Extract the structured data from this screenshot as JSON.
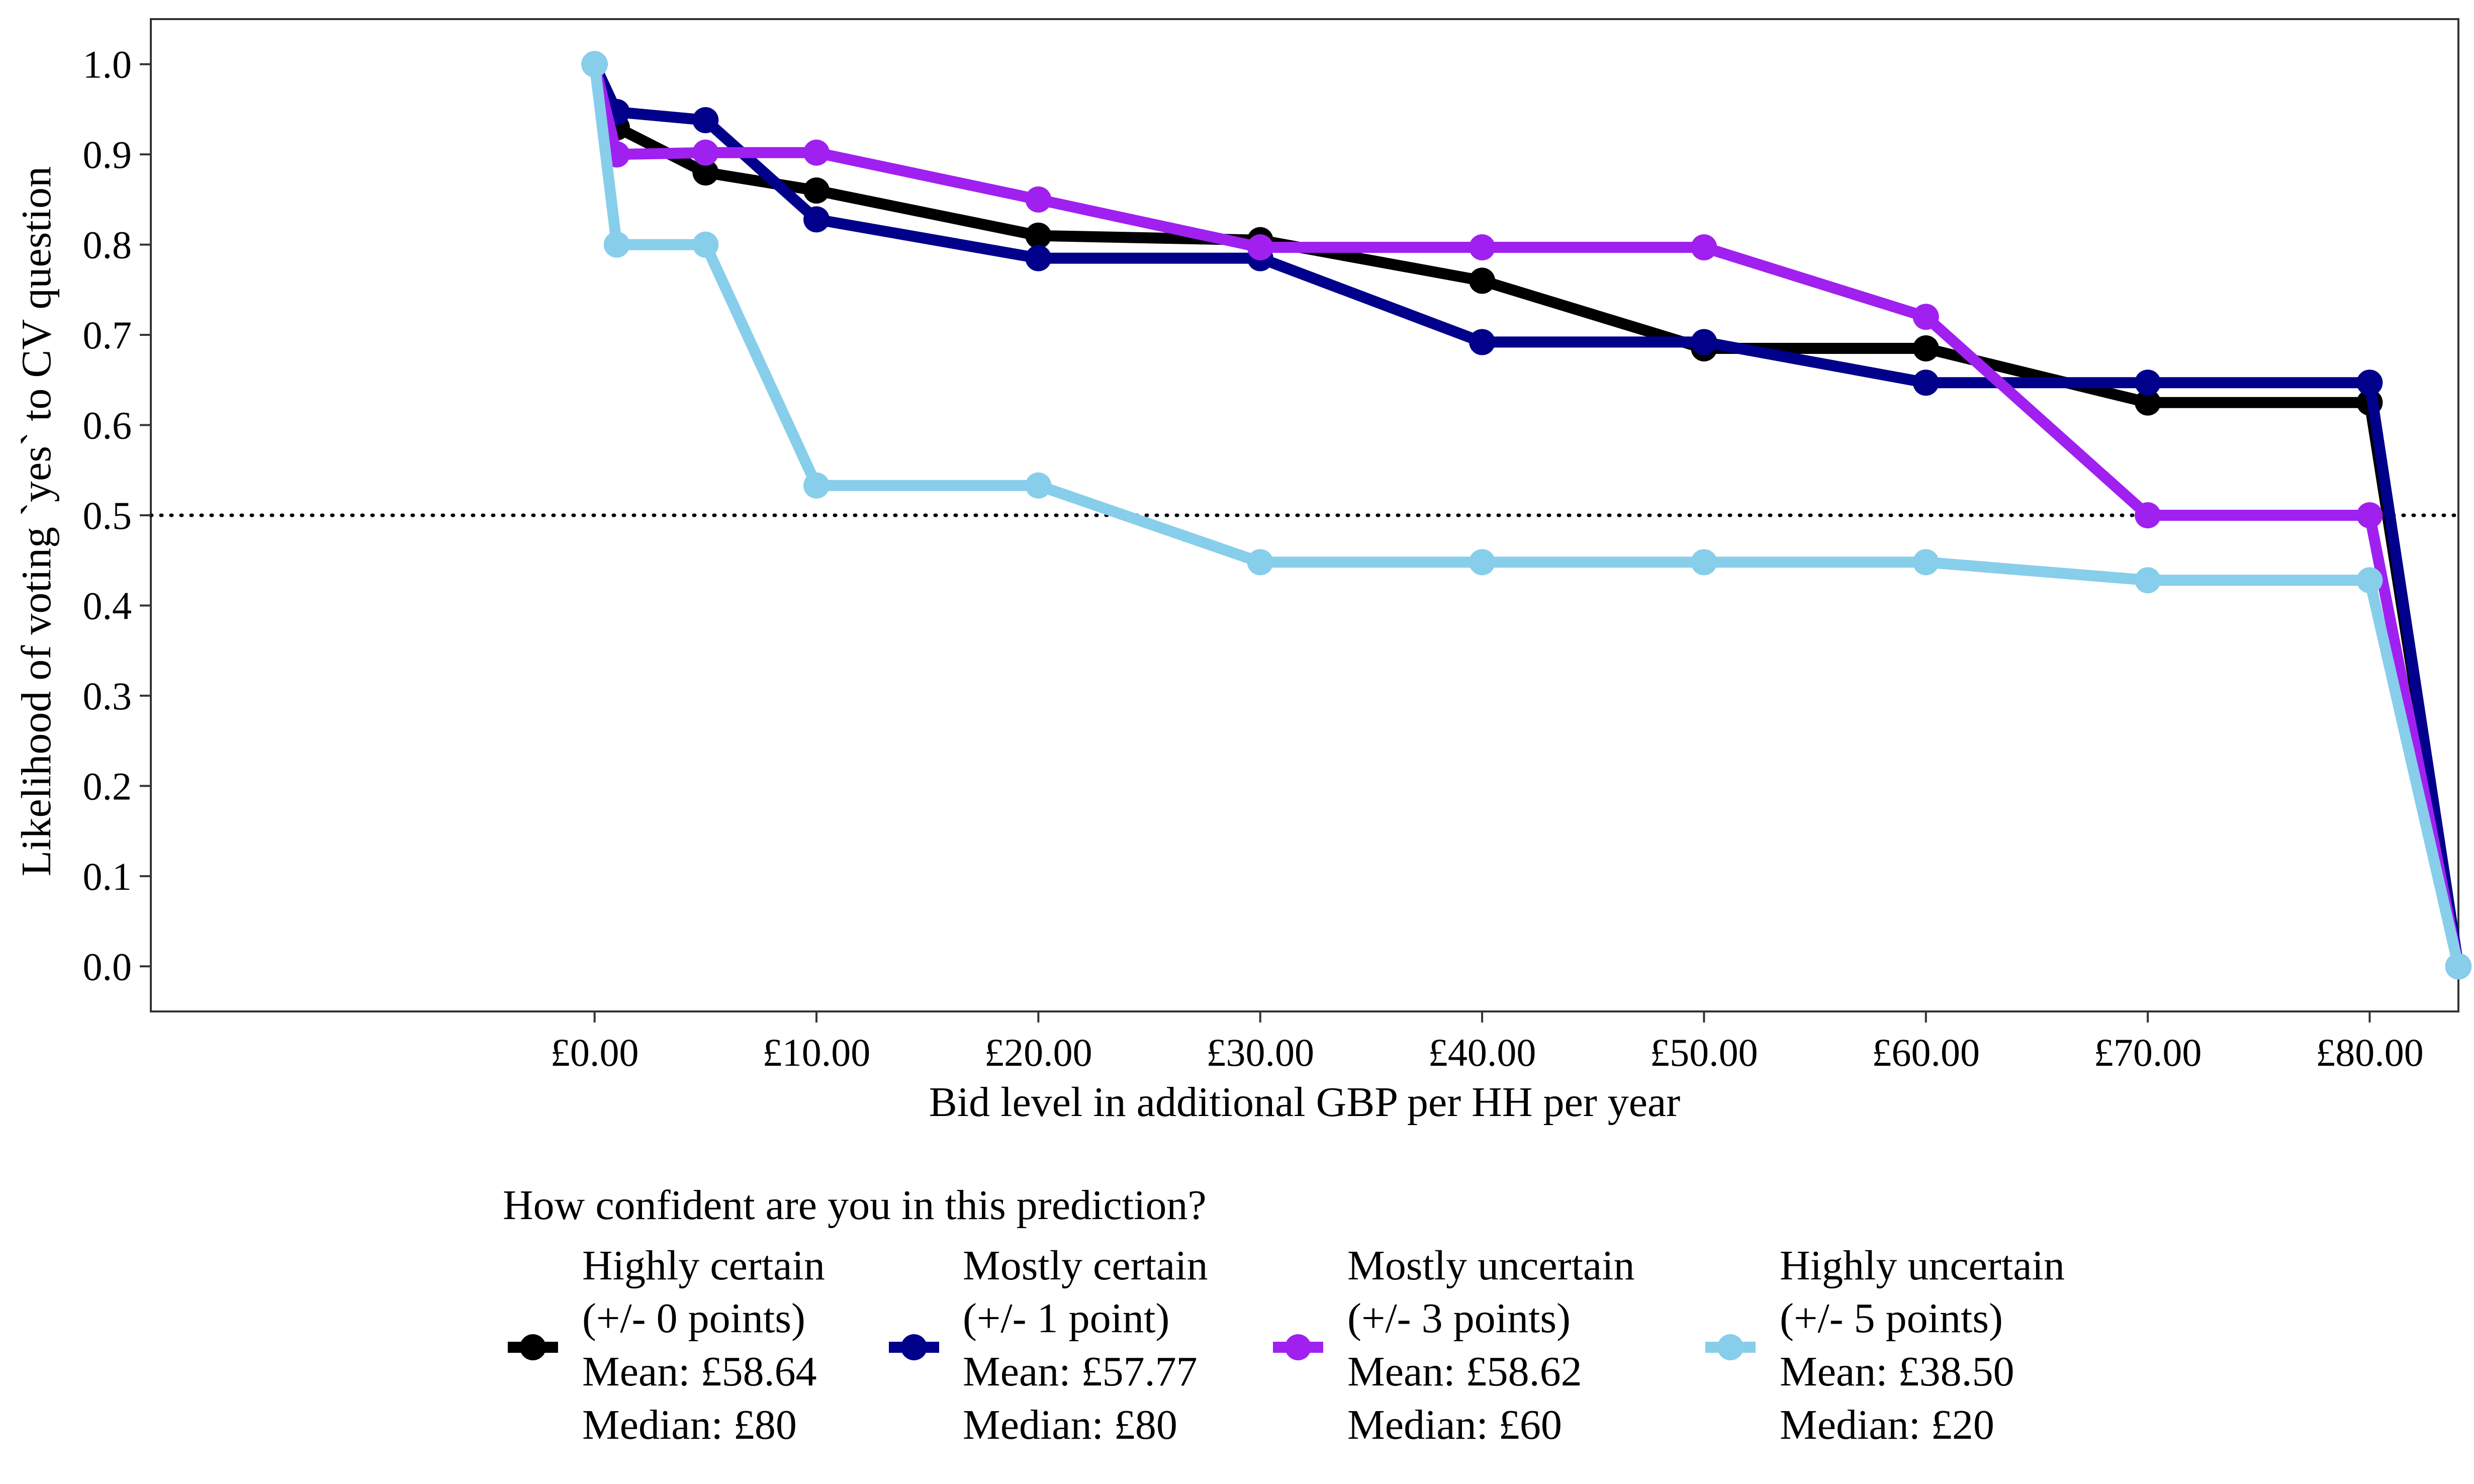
{
  "chart_data": {
    "type": "line",
    "xlabel": "Bid level in additional GBP per HH per year",
    "ylabel": "Likelihood of voting `yes` to CV question",
    "xlim": [
      -20,
      84
    ],
    "ylim": [
      -0.05,
      1.05
    ],
    "x_ticks": [
      0,
      10,
      20,
      30,
      40,
      50,
      60,
      70,
      80
    ],
    "x_tick_labels": [
      "£0.00",
      "£10.00",
      "£20.00",
      "£30.00",
      "£40.00",
      "£50.00",
      "£60.00",
      "£70.00",
      "£80.00"
    ],
    "y_ticks": [
      0.0,
      0.1,
      0.2,
      0.3,
      0.4,
      0.5,
      0.6,
      0.7,
      0.8,
      0.9,
      1.0
    ],
    "y_tick_labels": [
      "0.0",
      "0.1",
      "0.2",
      "0.3",
      "0.4",
      "0.5",
      "0.6",
      "0.7",
      "0.8",
      "0.9",
      "1.0"
    ],
    "reference_line": {
      "y": 0.5,
      "style": "dotted"
    },
    "grid": false,
    "legend": {
      "title": "How confident are you in this prediction?",
      "position": "bottom"
    },
    "series": [
      {
        "name": "Highly certain",
        "legend_lines": [
          "Highly certain",
          "(+/- 0 points)",
          "Mean: £58.64",
          "Median: £80"
        ],
        "color": "#000000",
        "points": [
          [
            0,
            1.0
          ],
          [
            1,
            0.93
          ],
          [
            5,
            0.88
          ],
          [
            10,
            0.86
          ],
          [
            20,
            0.81
          ],
          [
            30,
            0.805
          ],
          [
            40,
            0.76
          ],
          [
            50,
            0.685
          ],
          [
            60,
            0.685
          ],
          [
            70,
            0.625
          ],
          [
            80,
            0.625
          ],
          [
            84,
            0.0
          ]
        ]
      },
      {
        "name": "Mostly certain",
        "legend_lines": [
          "Mostly certain",
          "(+/- 1 point)",
          "Mean: £57.77",
          "Median: £80"
        ],
        "color": "#00008B",
        "points": [
          [
            0,
            1.0
          ],
          [
            1,
            0.947
          ],
          [
            5,
            0.938
          ],
          [
            10,
            0.828
          ],
          [
            20,
            0.785
          ],
          [
            30,
            0.785
          ],
          [
            40,
            0.692
          ],
          [
            50,
            0.692
          ],
          [
            60,
            0.647
          ],
          [
            70,
            0.647
          ],
          [
            80,
            0.647
          ],
          [
            84,
            0.0
          ]
        ]
      },
      {
        "name": "Mostly uncertain",
        "legend_lines": [
          "Mostly uncertain",
          "(+/- 3 points)",
          "Mean: £58.62",
          "Median: £60"
        ],
        "color": "#A020F0",
        "points": [
          [
            0,
            1.0
          ],
          [
            1,
            0.9
          ],
          [
            5,
            0.902
          ],
          [
            10,
            0.902
          ],
          [
            20,
            0.85
          ],
          [
            30,
            0.797
          ],
          [
            40,
            0.797
          ],
          [
            50,
            0.797
          ],
          [
            60,
            0.72
          ],
          [
            70,
            0.5
          ],
          [
            80,
            0.5
          ],
          [
            84,
            0.0
          ]
        ]
      },
      {
        "name": "Highly uncertain",
        "legend_lines": [
          "Highly uncertain",
          "(+/- 5 points)",
          "Mean: £38.50",
          "Median: £20"
        ],
        "color": "#87CEEB",
        "points": [
          [
            0,
            1.0
          ],
          [
            1,
            0.8
          ],
          [
            5,
            0.8
          ],
          [
            10,
            0.533
          ],
          [
            20,
            0.533
          ],
          [
            30,
            0.448
          ],
          [
            40,
            0.448
          ],
          [
            50,
            0.448
          ],
          [
            60,
            0.448
          ],
          [
            70,
            0.428
          ],
          [
            80,
            0.428
          ],
          [
            84,
            0.0
          ]
        ]
      }
    ]
  }
}
